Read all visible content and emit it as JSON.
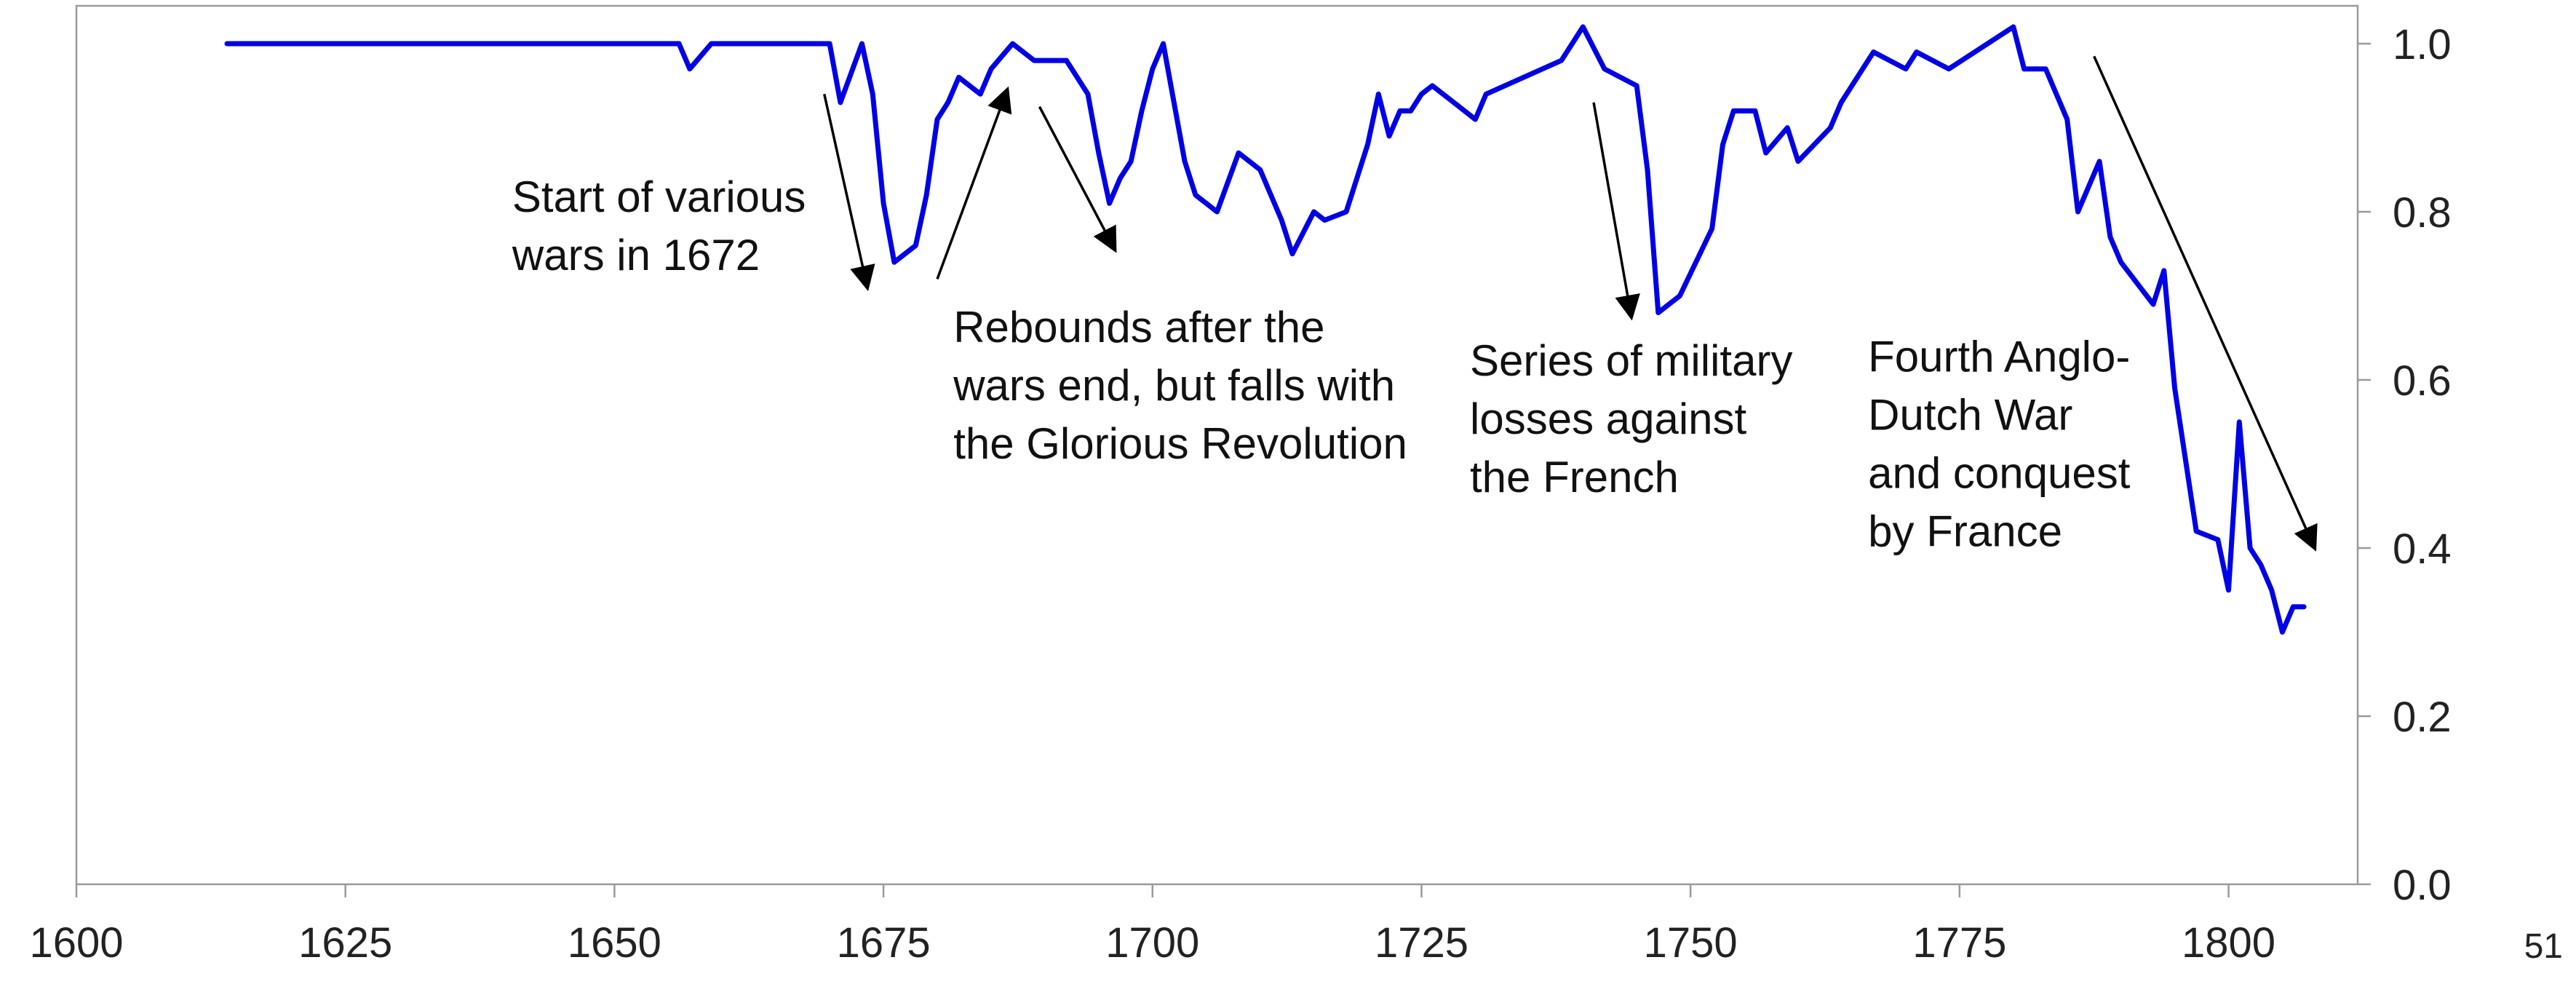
{
  "page_number": "51",
  "chart_data": {
    "type": "line",
    "title": "",
    "xlabel": "",
    "ylabel": "",
    "xlim": [
      1600,
      1812
    ],
    "ylim": [
      0,
      1.0
    ],
    "x_ticks": [
      "1600",
      "1625",
      "1650",
      "1675",
      "1700",
      "1725",
      "1750",
      "1775",
      "1800"
    ],
    "y_ticks": [
      "0.0",
      "0.2",
      "0.4",
      "0.6",
      "0.8",
      "1.0"
    ],
    "y_axis_side": "right",
    "grid": false,
    "legend": "none",
    "series": [
      {
        "color": "#0000e6",
        "points": [
          [
            1614,
            1.0
          ],
          [
            1656,
            1.0
          ],
          [
            1657,
            0.97
          ],
          [
            1659,
            1.0
          ],
          [
            1670,
            1.0
          ],
          [
            1671,
            0.93
          ],
          [
            1673,
            1.0
          ],
          [
            1674,
            0.94
          ],
          [
            1675,
            0.81
          ],
          [
            1676,
            0.74
          ],
          [
            1678,
            0.76
          ],
          [
            1679,
            0.82
          ],
          [
            1680,
            0.91
          ],
          [
            1681,
            0.93
          ],
          [
            1682,
            0.96
          ],
          [
            1684,
            0.94
          ],
          [
            1685,
            0.97
          ],
          [
            1687,
            1.0
          ],
          [
            1689,
            0.98
          ],
          [
            1692,
            0.98
          ],
          [
            1694,
            0.94
          ],
          [
            1695,
            0.87
          ],
          [
            1696,
            0.81
          ],
          [
            1697,
            0.84
          ],
          [
            1698,
            0.86
          ],
          [
            1699,
            0.92
          ],
          [
            1700,
            0.97
          ],
          [
            1701,
            1.0
          ],
          [
            1702,
            0.93
          ],
          [
            1703,
            0.86
          ],
          [
            1704,
            0.82
          ],
          [
            1706,
            0.8
          ],
          [
            1708,
            0.87
          ],
          [
            1710,
            0.85
          ],
          [
            1712,
            0.79
          ],
          [
            1713,
            0.75
          ],
          [
            1715,
            0.8
          ],
          [
            1716,
            0.79
          ],
          [
            1718,
            0.8
          ],
          [
            1720,
            0.88
          ],
          [
            1721,
            0.94
          ],
          [
            1722,
            0.89
          ],
          [
            1723,
            0.92
          ],
          [
            1724,
            0.92
          ],
          [
            1725,
            0.94
          ],
          [
            1726,
            0.95
          ],
          [
            1728,
            0.93
          ],
          [
            1730,
            0.91
          ],
          [
            1731,
            0.94
          ],
          [
            1738,
            0.98
          ],
          [
            1740,
            1.02
          ],
          [
            1742,
            0.97
          ],
          [
            1745,
            0.95
          ],
          [
            1746,
            0.85
          ],
          [
            1747,
            0.68
          ],
          [
            1749,
            0.7
          ],
          [
            1752,
            0.78
          ],
          [
            1753,
            0.88
          ],
          [
            1754,
            0.92
          ],
          [
            1756,
            0.92
          ],
          [
            1757,
            0.87
          ],
          [
            1759,
            0.9
          ],
          [
            1760,
            0.86
          ],
          [
            1763,
            0.9
          ],
          [
            1764,
            0.93
          ],
          [
            1767,
            0.99
          ],
          [
            1770,
            0.97
          ],
          [
            1771,
            0.99
          ],
          [
            1774,
            0.97
          ],
          [
            1780,
            1.02
          ],
          [
            1781,
            0.97
          ],
          [
            1783,
            0.97
          ],
          [
            1785,
            0.91
          ],
          [
            1786,
            0.8
          ],
          [
            1788,
            0.86
          ],
          [
            1789,
            0.77
          ],
          [
            1790,
            0.74
          ],
          [
            1793,
            0.69
          ],
          [
            1794,
            0.73
          ],
          [
            1795,
            0.59
          ],
          [
            1797,
            0.42
          ],
          [
            1799,
            0.41
          ],
          [
            1800,
            0.35
          ],
          [
            1801,
            0.55
          ],
          [
            1802,
            0.4
          ],
          [
            1803,
            0.38
          ],
          [
            1804,
            0.35
          ],
          [
            1805,
            0.3
          ],
          [
            1806,
            0.33
          ],
          [
            1807,
            0.33
          ]
        ]
      }
    ],
    "annotations": [
      {
        "lines": [
          "Start of various",
          "wars in 1672"
        ],
        "text_at": [
          1640.5,
          0.8
        ],
        "arrows": [
          {
            "from": [
              1669.5,
              0.94
            ],
            "to": [
              1673.5,
              0.71
            ]
          }
        ]
      },
      {
        "lines": [
          "Rebounds after the",
          "wars end, but falls with",
          "the Glorious Revolution"
        ],
        "text_at": [
          1681.5,
          0.645
        ],
        "arrows": [
          {
            "from": [
              1680,
              0.72
            ],
            "to": [
              1686.5,
              0.945
            ]
          },
          {
            "from": [
              1689.5,
              0.925
            ],
            "to": [
              1696.5,
              0.755
            ]
          }
        ]
      },
      {
        "lines": [
          "Series of military",
          "losses against",
          "the French"
        ],
        "text_at": [
          1729.5,
          0.605
        ],
        "arrows": [
          {
            "from": [
              1741,
              0.93
            ],
            "to": [
              1744.5,
              0.675
            ]
          }
        ]
      },
      {
        "lines": [
          "Fourth Anglo-",
          "Dutch War",
          "and conquest",
          "by France"
        ],
        "text_at": [
          1766.5,
          0.61
        ],
        "arrows": [
          {
            "from": [
              1787.5,
              0.985
            ],
            "to": [
              1808,
              0.4
            ]
          }
        ]
      }
    ]
  }
}
